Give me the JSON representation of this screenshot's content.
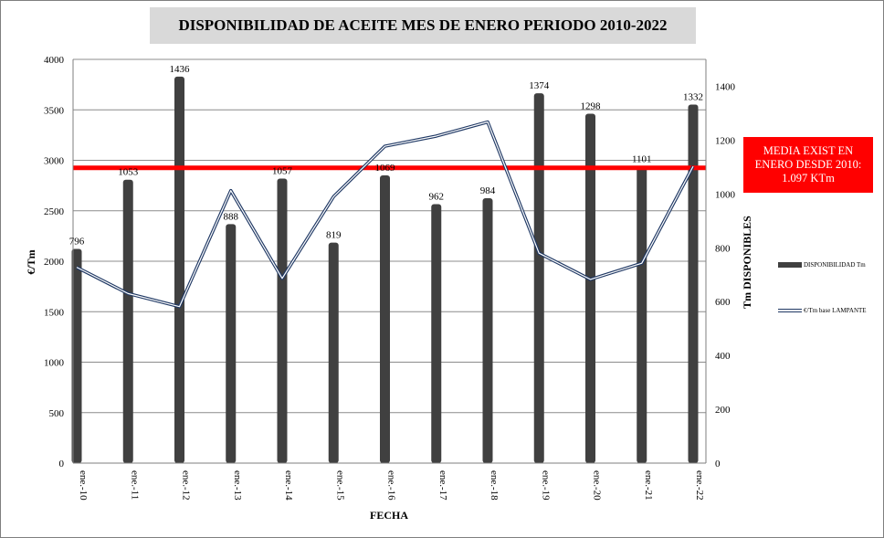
{
  "chart_data": {
    "type": "bar",
    "title": "DISPONIBILIDAD DE ACEITE MES DE ENERO PERIODO 2010-2022",
    "xlabel": "FECHA",
    "ylabel_left": "€/Tm",
    "ylabel_right": "Tm DISPONIBLES",
    "categories": [
      "ene.-10",
      "ene.-11",
      "ene.-12",
      "ene.-13",
      "ene.-14",
      "ene.-15",
      "ene.-16",
      "ene.-17",
      "ene.-18",
      "ene.-19",
      "ene.-20",
      "ene.-21",
      "ene.-22"
    ],
    "y_left_ticks": [
      "0",
      "500",
      "1000",
      "1500",
      "2000",
      "2500",
      "3000",
      "3500",
      "4000"
    ],
    "y_right_ticks": [
      "0",
      "200",
      "400",
      "600",
      "800",
      "1000",
      "1200",
      "1400"
    ],
    "y_left_range": [
      0,
      4000
    ],
    "y_right_range": [
      0,
      1500
    ],
    "grid": "horizontal",
    "legend_position": "right",
    "series": [
      {
        "name": "DISPONIBILIDAD Tm",
        "type": "bar",
        "axis": "right",
        "color": "#404040",
        "values": [
          796,
          1053,
          1436,
          888,
          1057,
          819,
          1069,
          962,
          984,
          1374,
          1298,
          1101,
          1332
        ],
        "labels": [
          "796",
          "1053",
          "1436",
          "888",
          "1057",
          "819",
          "1069",
          "962",
          "984",
          "1374",
          "1298",
          "1101",
          "1332"
        ]
      },
      {
        "name": "€/Tm base LAMPANTE",
        "type": "line",
        "axis": "left",
        "color": "#1f3864",
        "values": [
          1940,
          1680,
          1550,
          2700,
          1830,
          2640,
          3140,
          3240,
          3380,
          2080,
          1820,
          1980,
          2940
        ]
      }
    ],
    "reference_line": {
      "axis": "right",
      "value": 1097,
      "color": "#ff0000"
    },
    "annotation": "MEDIA EXIST EN\nENERO DESDE 2010:\n1.097 KTm"
  }
}
